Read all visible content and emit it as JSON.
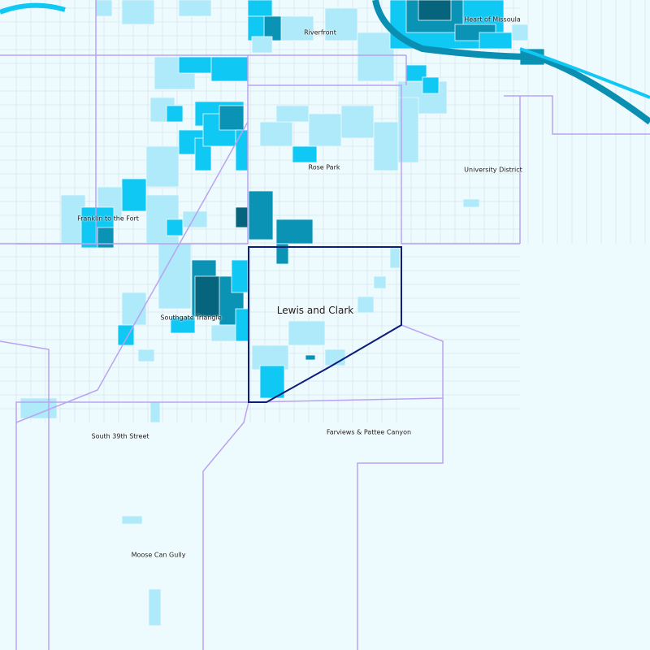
{
  "map": {
    "selected_neighborhood": "Lewis and Clark",
    "labels": [
      {
        "id": "heart-of-missoula",
        "text": "Heart of Missoula"
      },
      {
        "id": "riverfront",
        "text": "Riverfront"
      },
      {
        "id": "rose-park",
        "text": "Rose Park"
      },
      {
        "id": "university-district",
        "text": "University District"
      },
      {
        "id": "franklin-to-the-fort",
        "text": "Franklin to the Fort"
      },
      {
        "id": "southgate-triangle",
        "text": "Southgate Triangle"
      },
      {
        "id": "lewis-and-clark",
        "text": "Lewis and Clark"
      },
      {
        "id": "south-39th-street",
        "text": "South 39th Street"
      },
      {
        "id": "farviews-pattee-canyon",
        "text": "Farviews & Pattee Canyon"
      },
      {
        "id": "moose-can-gully",
        "text": "Moose Can Gully"
      }
    ],
    "colors": {
      "background": "#eefbfe",
      "class_1": "#aeeaf9",
      "class_2": "#10c8f4",
      "class_3": "#0b93b6",
      "class_4": "#06647c",
      "river": "#0a8fb3",
      "neighborhood_boundary": "#b9a3f0",
      "selected_boundary": "#0c1d7a",
      "streets": "#d6e3ea"
    }
  }
}
